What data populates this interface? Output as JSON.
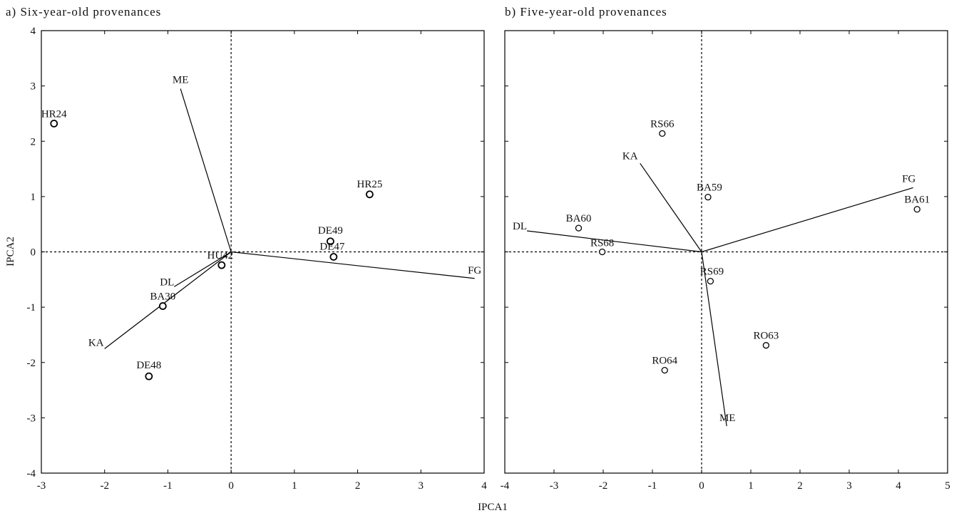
{
  "chart_data": [
    {
      "type": "scatter",
      "title": "a) Six-year-old provenances",
      "xlabel": "IPCA1",
      "ylabel": "IPCA2",
      "xlim": [
        -3,
        4
      ],
      "ylim": [
        -4,
        4
      ],
      "xticks": [
        -3,
        -2,
        -1,
        0,
        1,
        2,
        3,
        4
      ],
      "yticks": [
        -4,
        -3,
        -2,
        -1,
        0,
        1,
        2,
        3,
        4
      ],
      "reference_lines": {
        "x": 0,
        "y": 0,
        "style": "dashed"
      },
      "points": [
        {
          "label": "HR24",
          "x": -2.8,
          "y": 2.32
        },
        {
          "label": "HR25",
          "x": 2.19,
          "y": 1.04
        },
        {
          "label": "DE49",
          "x": 1.57,
          "y": 0.19
        },
        {
          "label": "DE47",
          "x": 1.62,
          "y": -0.09
        },
        {
          "label": "HU42",
          "x": -0.15,
          "y": -0.24
        },
        {
          "label": "BA30",
          "x": -1.08,
          "y": -0.98
        },
        {
          "label": "DE48",
          "x": -1.3,
          "y": -2.25
        }
      ],
      "vectors": [
        {
          "label": "ME",
          "x": -0.8,
          "y": 2.95
        },
        {
          "label": "FG",
          "x": 3.85,
          "y": -0.48
        },
        {
          "label": "DL",
          "x": -0.9,
          "y": -0.63
        },
        {
          "label": "KA",
          "x": -2.0,
          "y": -1.75
        }
      ]
    },
    {
      "type": "scatter",
      "title": "b) Five-year-old provenances",
      "xlabel": "IPCA1",
      "ylabel": "",
      "xlim": [
        -4,
        5
      ],
      "ylim": [
        -4,
        4
      ],
      "xticks": [
        -4,
        -3,
        -2,
        -1,
        0,
        1,
        2,
        3,
        4,
        5
      ],
      "yticks": [
        -4,
        -3,
        -2,
        -1,
        0,
        1,
        2,
        3,
        4
      ],
      "reference_lines": {
        "x": 0,
        "y": 0,
        "style": "dashed"
      },
      "points": [
        {
          "label": "RS66",
          "x": -0.8,
          "y": 2.14
        },
        {
          "label": "BA59",
          "x": 0.13,
          "y": 0.99
        },
        {
          "label": "BA61",
          "x": 4.38,
          "y": 0.77
        },
        {
          "label": "BA60",
          "x": -2.5,
          "y": 0.43
        },
        {
          "label": "RS68",
          "x": -2.02,
          "y": 0.0
        },
        {
          "label": "RS69",
          "x": 0.18,
          "y": -0.53
        },
        {
          "label": "RO63",
          "x": 1.31,
          "y": -1.69
        },
        {
          "label": "RO64",
          "x": -0.75,
          "y": -2.14
        }
      ],
      "vectors": [
        {
          "label": "KA",
          "x": -1.25,
          "y": 1.6
        },
        {
          "label": "FG",
          "x": 4.3,
          "y": 1.16
        },
        {
          "label": "DL",
          "x": -3.55,
          "y": 0.38
        },
        {
          "label": "ME",
          "x": 0.51,
          "y": -3.15
        }
      ]
    }
  ]
}
